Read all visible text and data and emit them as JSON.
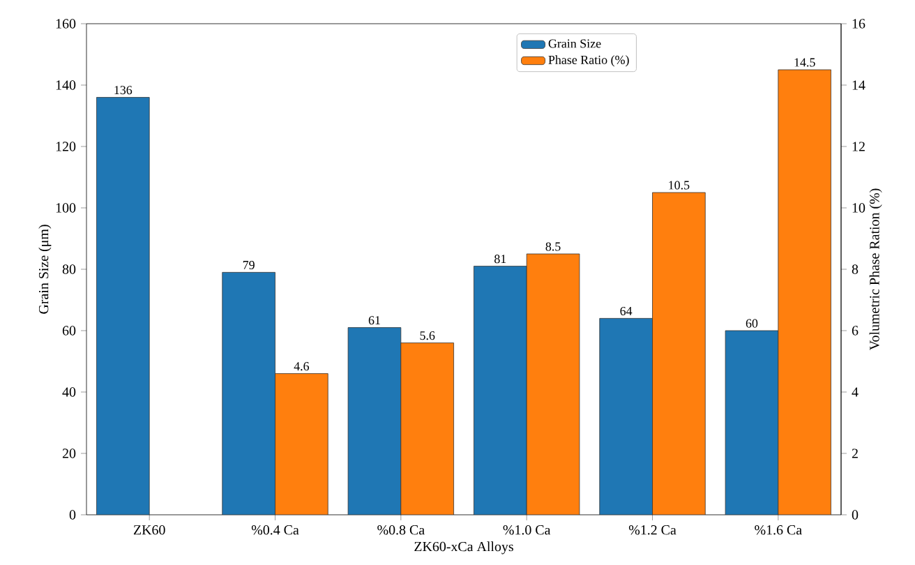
{
  "chart_data": {
    "type": "bar",
    "xlabel": "ZK60-xCa Alloys",
    "ylabel": "Grain Size  (μm)",
    "y2label": "Volumetric Phase Ration (%)",
    "categories": [
      "ZK60",
      "%0.4 Ca",
      "%0.8 Ca",
      "%1.0 Ca",
      "%1.2 Ca",
      "%1.6 Ca"
    ],
    "series": [
      {
        "name": "Grain Size",
        "color": "#1f77b4",
        "values": [
          136,
          79,
          61,
          81,
          64,
          60
        ]
      },
      {
        "name": "Phase Ratio (%)",
        "color": "#ff7f0e",
        "axis": "y2",
        "values": [
          null,
          4.6,
          5.6,
          8.5,
          10.5,
          14.5
        ]
      }
    ],
    "ylim": [
      0,
      160
    ],
    "yticks": [
      0,
      20,
      40,
      60,
      80,
      100,
      120,
      140,
      160
    ],
    "y2lim": [
      0,
      16
    ],
    "y2ticks": [
      0,
      2,
      4,
      6,
      8,
      10,
      12,
      14,
      16
    ],
    "data_labels": true,
    "legend": "top right"
  }
}
